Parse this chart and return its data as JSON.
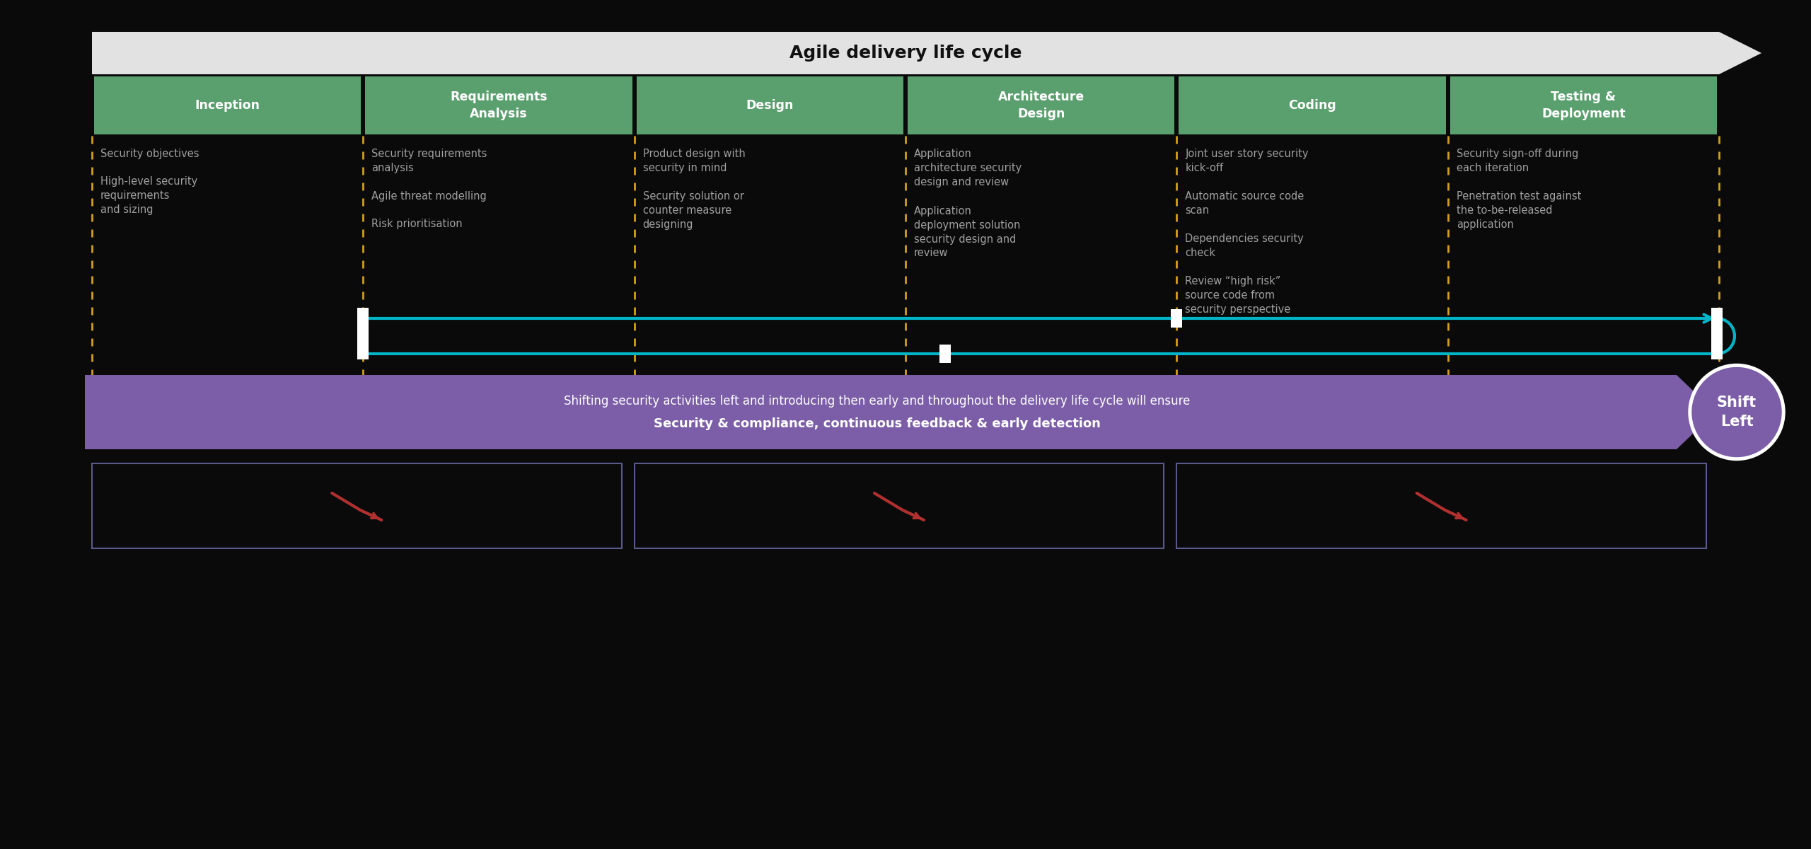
{
  "bg_color": "#0a0a0a",
  "title_arrow_text": "Agile delivery life cycle",
  "title_arrow_bg": "#e2e2e2",
  "phases": [
    {
      "title": "Inception",
      "items": [
        "Security objectives",
        "High-level security\nrequirements\nand sizing"
      ]
    },
    {
      "title": "Requirements\nAnalysis",
      "items": [
        "Security requirements\nanalysis",
        "Agile threat modelling",
        "Risk prioritisation"
      ]
    },
    {
      "title": "Design",
      "items": [
        "Product design with\nsecurity in mind",
        "Security solution or\ncounter measure\ndesigning"
      ]
    },
    {
      "title": "Architecture\nDesign",
      "items": [
        "Application\narchitecture security\ndesign and review",
        "Application\ndeployment solution\nsecurity design and\nreview"
      ]
    },
    {
      "title": "Coding",
      "items": [
        "Joint user story security\nkick-off",
        "Automatic source code\nscan",
        "Dependencies security\ncheck",
        "Review “high risk”\nsource code from\nsecurity perspective"
      ]
    },
    {
      "title": "Testing &\nDeployment",
      "items": [
        "Security sign-off during\neach iteration",
        "Penetration test against\nthe to-be-released\napplication"
      ]
    }
  ],
  "header_color": "#5a9f6e",
  "header_text_color": "#ffffff",
  "item_text_color": "#a0a0a0",
  "dashed_line_color": "#d4a017",
  "teal_color": "#00b4c8",
  "purple_color": "#7b5ea7",
  "white": "#ffffff",
  "banner_text1": "Shifting security activities left and introducing then early and throughout the delivery life cycle will ensure",
  "banner_text2": "Security & compliance, continuous feedback & early detection",
  "shift_left": "Shift\nLeft",
  "bottom_box_color": "#1a1a1a",
  "bottom_box_border": "#5a5a8a"
}
